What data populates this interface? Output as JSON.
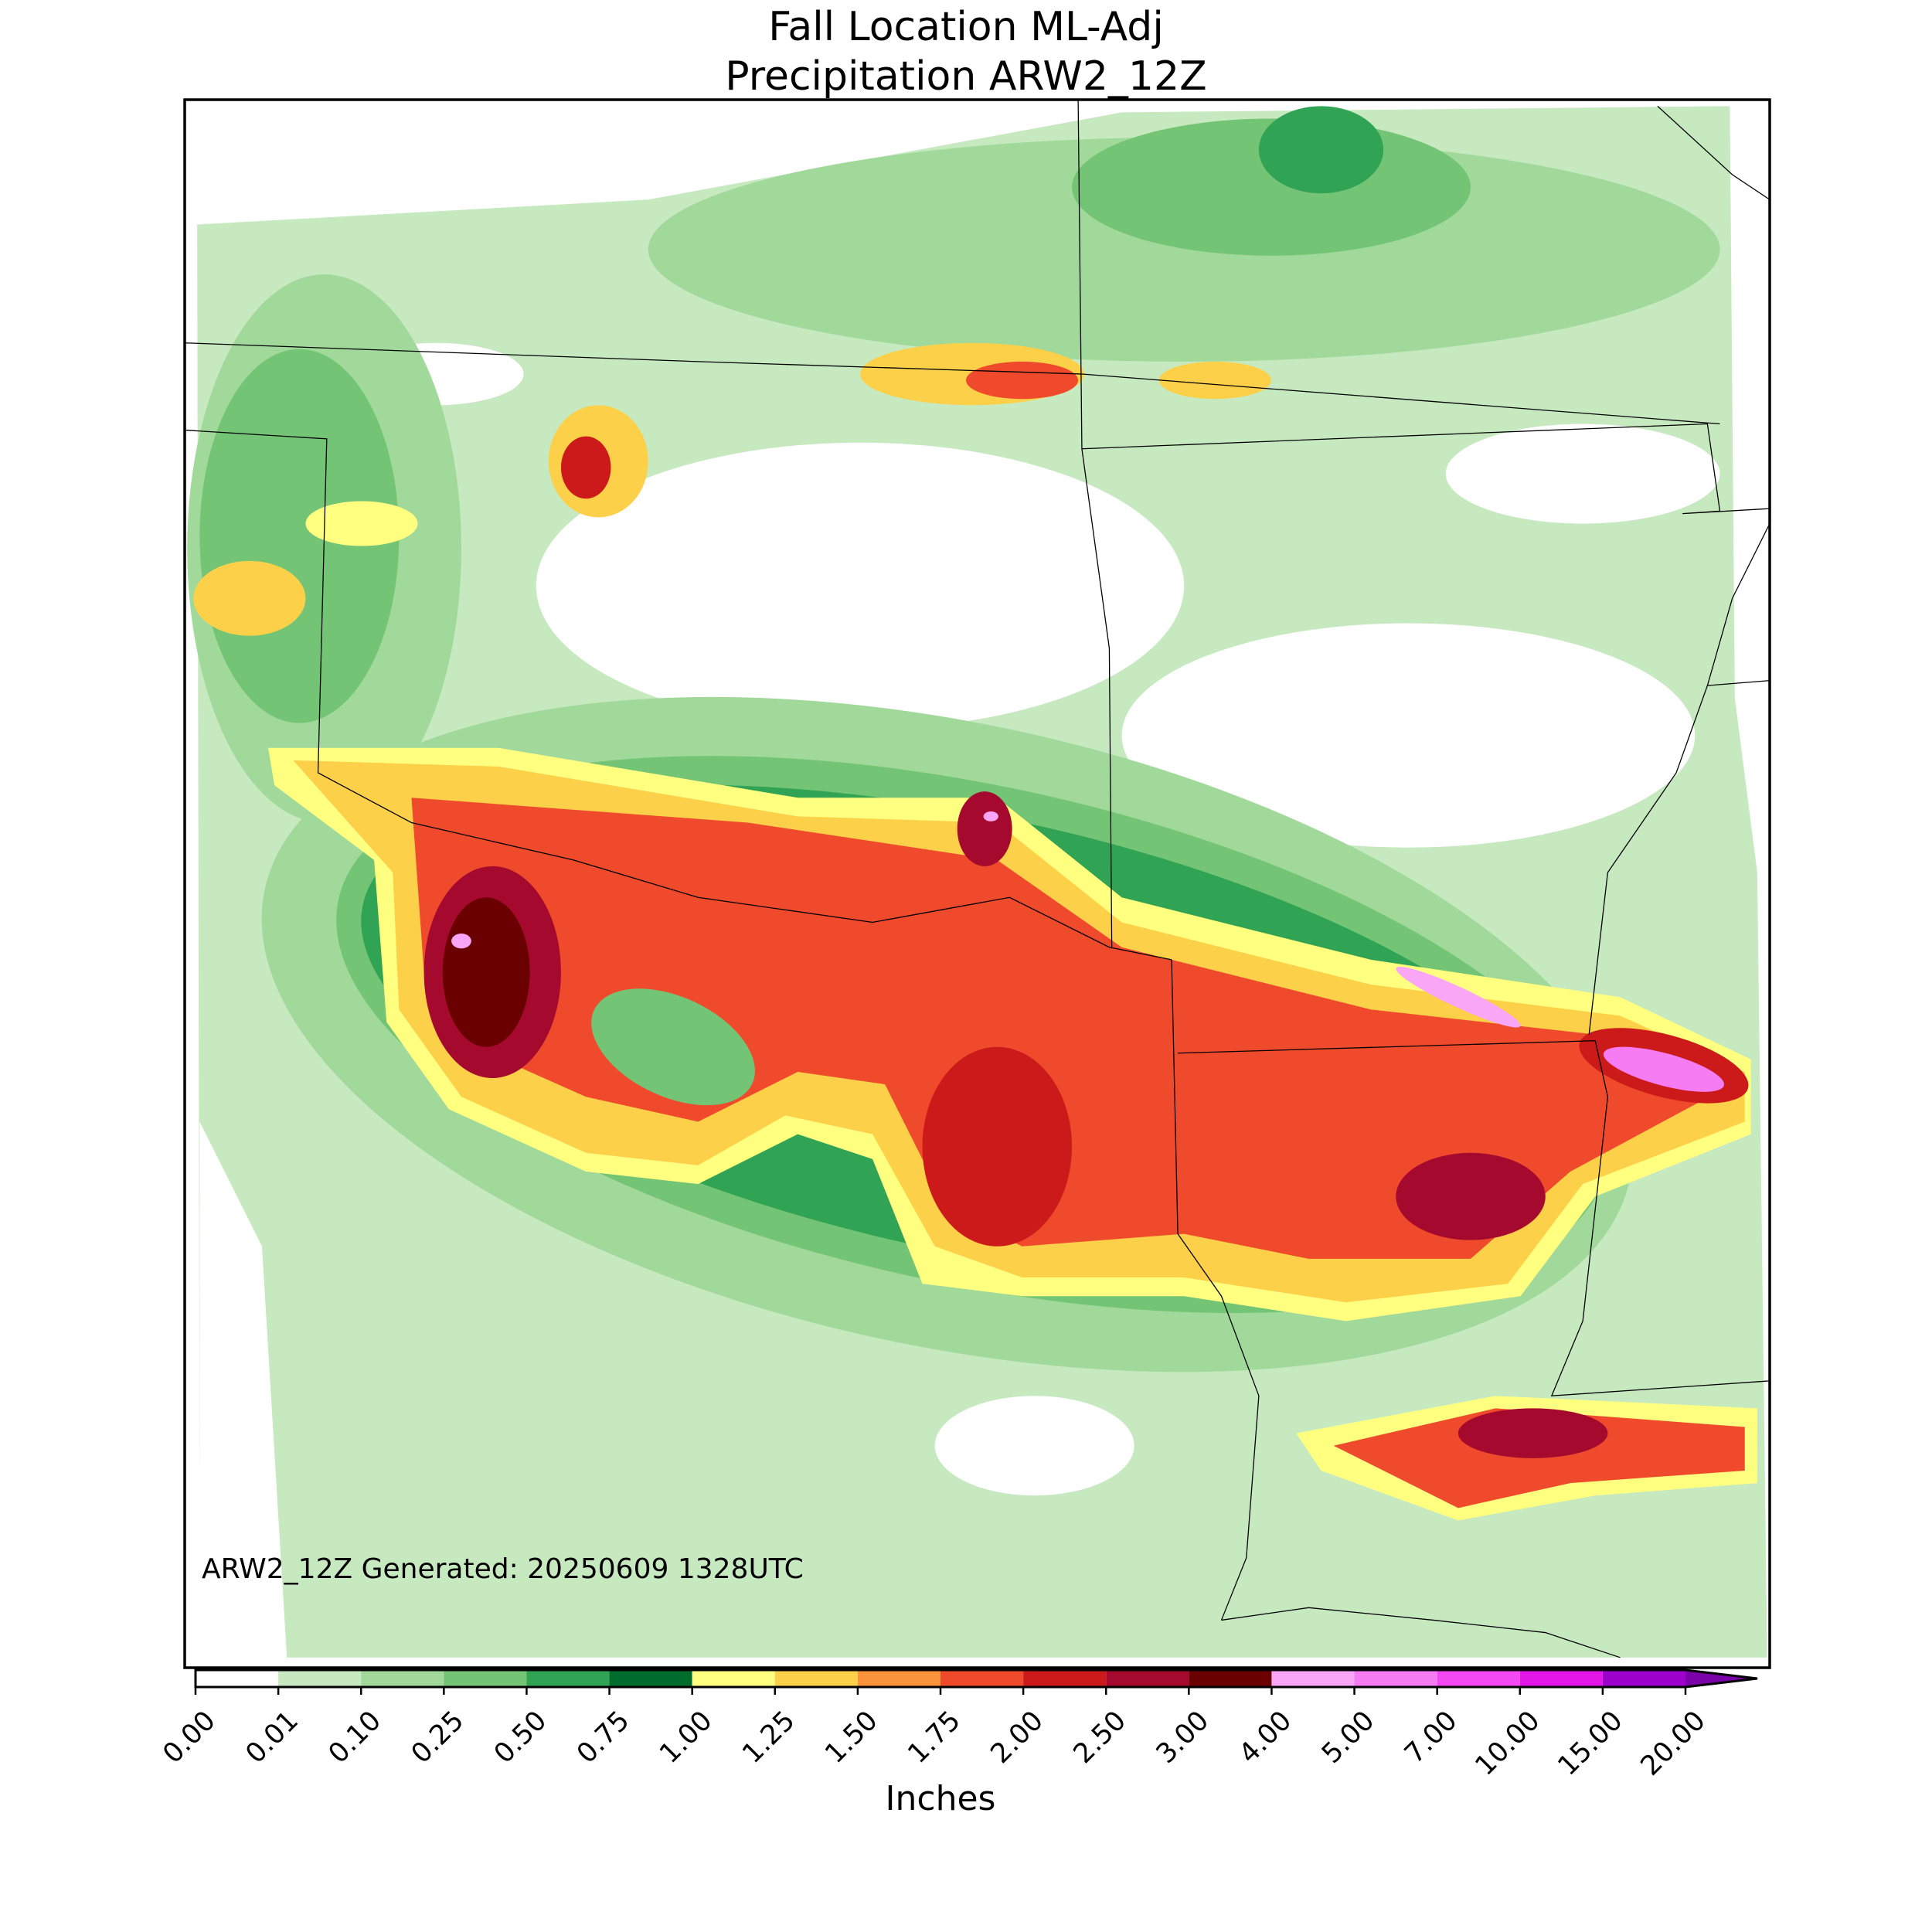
{
  "map": {
    "title": [
      "Fall Location ML-Adj",
      "Precipitation ARW2_12Z"
    ],
    "annotation": "ARW2_12Z Generated: 20250609 1328UTC",
    "colorbar": {
      "label": "Inches",
      "ticks": [
        {
          "value": 0,
          "label": "0.00"
        },
        {
          "value": 0.01,
          "label": "0.01"
        },
        {
          "value": 0.1,
          "label": "0.10"
        },
        {
          "value": 0.25,
          "label": "0.25"
        },
        {
          "value": 0.5,
          "label": "0.50"
        },
        {
          "value": 0.75,
          "label": "0.75"
        },
        {
          "value": 1,
          "label": "1.00"
        },
        {
          "value": 1.25,
          "label": "1.25"
        },
        {
          "value": 1.5,
          "label": "1.50"
        },
        {
          "value": 1.75,
          "label": "1.75"
        },
        {
          "value": 2,
          "label": "2.00"
        },
        {
          "value": 2.5,
          "label": "2.50"
        },
        {
          "value": 3,
          "label": "3.00"
        },
        {
          "value": 4,
          "label": "4.00"
        },
        {
          "value": 5,
          "label": "5.00"
        },
        {
          "value": 7,
          "label": "7.00"
        },
        {
          "value": 10,
          "label": "10.00"
        },
        {
          "value": 15,
          "label": "15.00"
        },
        {
          "value": 20,
          "label": "20.00"
        }
      ],
      "colors": [
        "#ffffff",
        "#c7e9c0",
        "#a1d99b",
        "#74c476",
        "#31a354",
        "#006d2c",
        "#ffff80",
        "#fdd049",
        "#fb923c",
        "#ef4a2c",
        "#cc1a1a",
        "#a50a2e",
        "#6b0000",
        "#f8a6f5",
        "#f67cf4",
        "#f448f2",
        "#e316e8",
        "#9e00cc"
      ],
      "extend_color": "#7a00a8"
    }
  }
}
